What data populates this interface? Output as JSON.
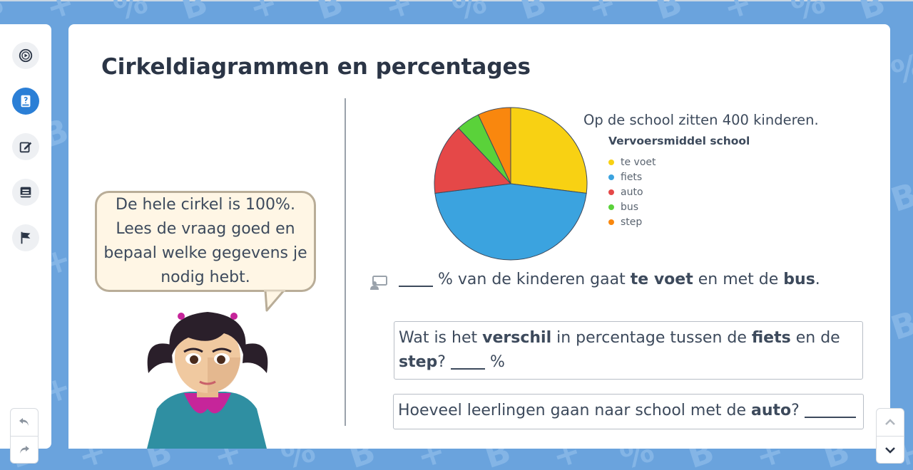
{
  "page": {
    "title": "Cirkeldiagrammen en percentages"
  },
  "toolbar": {
    "items": [
      {
        "icon": "video-play-icon",
        "active": false
      },
      {
        "icon": "instruction-book-icon",
        "active": true
      },
      {
        "icon": "edit-icon",
        "active": false
      },
      {
        "icon": "notes-icon",
        "active": false
      },
      {
        "icon": "flag-icon",
        "active": false
      }
    ],
    "undo_icon": "undo-icon",
    "redo_icon": "redo-icon"
  },
  "bubble": {
    "text": "De hele cirkel is 100%. Lees de vraag goed en bepaal welke gegevens je nodig hebt."
  },
  "context": {
    "intro": "Op de school zitten 400 kinderen."
  },
  "chart_data": {
    "type": "pie",
    "legend_title": "Vervoersmiddel school",
    "legend_position": "right",
    "categories": [
      "te voet",
      "fiets",
      "auto",
      "bus",
      "step"
    ],
    "values": [
      27,
      46,
      15,
      5,
      7
    ],
    "colors": [
      "#f8d113",
      "#3ba3df",
      "#e54848",
      "#5ad23a",
      "#f9870e"
    ]
  },
  "question1": {
    "icon": "assistant-icon",
    "part1": "% van de kinderen gaat",
    "bold1": "te voet",
    "part2": "en met de",
    "bold2": "bus",
    "end": "."
  },
  "question2": {
    "part1": "Wat is het",
    "bold1": "verschil",
    "part2": "in percentage tussen de",
    "bold2": "fiets",
    "part3": "en de",
    "bold3": "step",
    "part4": "?",
    "unit": "%"
  },
  "question3": {
    "part1": "Hoeveel leerlingen gaan naar school met de",
    "bold1": "auto",
    "part2": "?"
  },
  "nav": {
    "up_icon": "chevron-up-icon",
    "down_icon": "chevron-down-icon"
  },
  "colors": {
    "background": "#6aa3dd",
    "accent": "#2b7fd6"
  }
}
